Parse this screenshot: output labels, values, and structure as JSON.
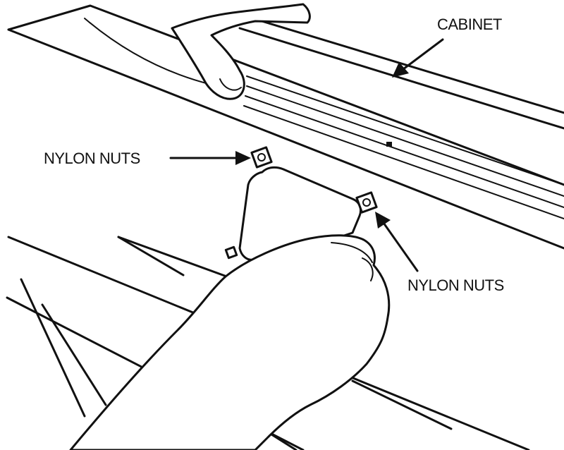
{
  "diagram": {
    "labels": {
      "cabinet": "CABINET",
      "nylon_nuts_left": "NYLON NUTS",
      "nylon_nuts_right": "NYLON NUTS"
    },
    "colors": {
      "ink": "#111111",
      "background": "#ffffff"
    }
  }
}
